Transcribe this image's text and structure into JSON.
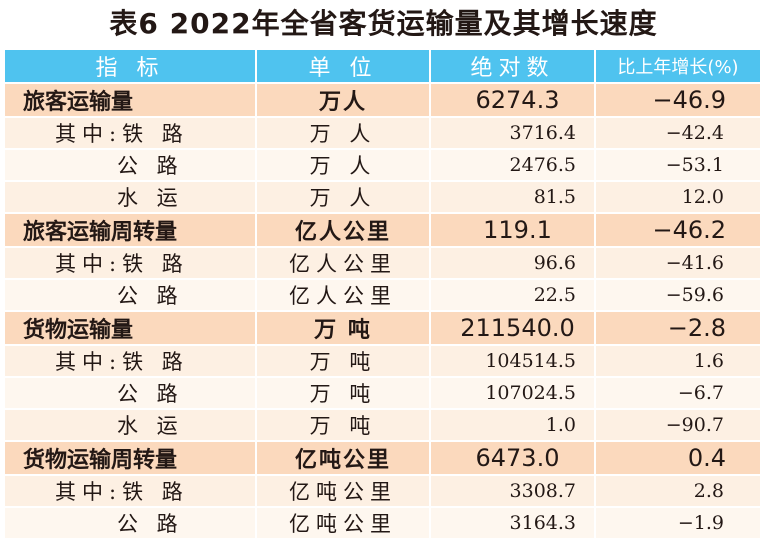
{
  "title": "表6  2022年全省客货运输量及其增长速度",
  "headers": [
    "指 标",
    "单 位",
    "绝对数",
    "比上年增长(%)"
  ],
  "rows": [
    {
      "type": "main",
      "name": "旅客运输量",
      "unit": "万人",
      "value": "6274.3",
      "growth": "−46.9"
    },
    {
      "type": "sub",
      "name": "其中:铁 路",
      "unit": "万 人",
      "value": "3716.4",
      "growth": "−42.4"
    },
    {
      "type": "sub",
      "name": "公 路",
      "unit": "万 人",
      "value": "2476.5",
      "growth": "−53.1"
    },
    {
      "type": "sub",
      "name": "水 运",
      "unit": "万 人",
      "value": "81.5",
      "growth": "12.0"
    },
    {
      "type": "main",
      "name": "旅客运输周转量",
      "unit": "亿人公里",
      "value": "119.1",
      "growth": "−46.2"
    },
    {
      "type": "sub",
      "name": "其中:铁 路",
      "unit": "亿人公里",
      "value": "96.6",
      "growth": "−41.6"
    },
    {
      "type": "sub",
      "name": "公 路",
      "unit": "亿人公里",
      "value": "22.5",
      "growth": "−59.6"
    },
    {
      "type": "main",
      "name": "货物运输量",
      "unit": "万  吨",
      "value": "211540.0",
      "growth": "−2.8"
    },
    {
      "type": "sub",
      "name": "其中:铁 路",
      "unit": "万 吨",
      "value": "104514.5",
      "growth": "1.6"
    },
    {
      "type": "sub",
      "name": "公 路",
      "unit": "万 吨",
      "value": "107024.5",
      "growth": "−6.7"
    },
    {
      "type": "sub",
      "name": "水 运",
      "unit": "万 吨",
      "value": "1.0",
      "growth": "−90.7"
    },
    {
      "type": "main",
      "name": "货物运输周转量",
      "unit": "亿吨公里",
      "value": "6473.0",
      "growth": "0.4"
    },
    {
      "type": "sub",
      "name": "其中:铁 路",
      "unit": "亿吨公里",
      "value": "3308.7",
      "growth": "2.8"
    },
    {
      "type": "sub",
      "name": "公 路",
      "unit": "亿吨公里",
      "value": "3164.3",
      "growth": "−1.9"
    }
  ]
}
